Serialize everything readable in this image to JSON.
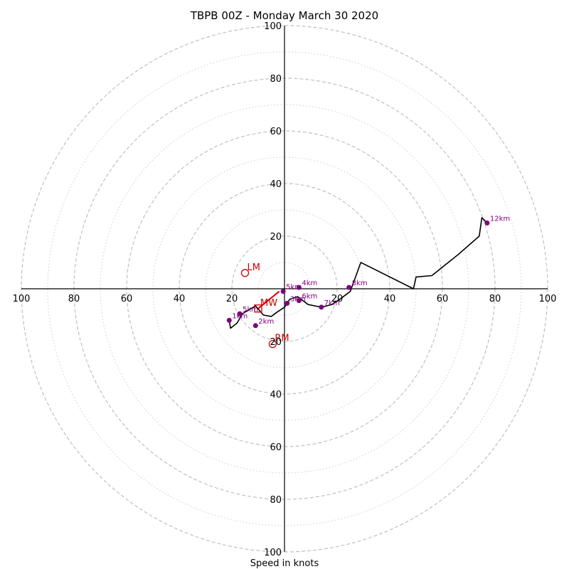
{
  "chart_data": {
    "type": "scatter",
    "subtype": "hodograph",
    "title": "TBPB 00Z - Monday March 30 2020",
    "xlabel": "Speed in knots",
    "ylabel": "",
    "xlim": [
      -100,
      100
    ],
    "ylim": [
      -100,
      100
    ],
    "rings_dashed": [
      20,
      40,
      60,
      80,
      100
    ],
    "rings_dotted": [
      10,
      30,
      50,
      70,
      90
    ],
    "x_tick_labels": [
      "100",
      "80",
      "60",
      "40",
      "20",
      "20",
      "40",
      "60",
      "80",
      "100"
    ],
    "y_tick_labels": [
      "100",
      "80",
      "60",
      "40",
      "20",
      "20",
      "40",
      "60",
      "80",
      "100"
    ],
    "colors": {
      "profile": "#000000",
      "height_marker": "#800080",
      "storm_motion": "#cc0000",
      "ring": "#bbbbbb"
    },
    "profile": {
      "u": [
        -21,
        -20.5,
        -18,
        -16,
        -11,
        -8,
        -5,
        -3,
        0,
        2,
        5,
        9,
        14,
        18,
        21,
        25,
        29,
        49,
        50,
        56,
        66,
        74,
        75,
        77
      ],
      "v": [
        -12,
        -15,
        -13,
        -9.5,
        -6.5,
        -10,
        -10.5,
        -9,
        -7,
        -4,
        -3,
        -6,
        -7,
        -6,
        -4,
        -1,
        10,
        0,
        4.5,
        5,
        13,
        20,
        27,
        25
      ]
    },
    "height_points": [
      {
        "label": "1km",
        "u": -21,
        "v": -12
      },
      {
        "label": "5km",
        "u": -17,
        "v": -9.5
      },
      {
        "label": "2km",
        "u": -11,
        "v": -14
      },
      {
        "label": "5km",
        "u": -0.5,
        "v": -1
      },
      {
        "label": "4km",
        "u": 5.5,
        "v": 0.5
      },
      {
        "label": "3km",
        "u": 1,
        "v": -5.5
      },
      {
        "label": "6km",
        "u": 5.5,
        "v": -4.5
      },
      {
        "label": "7km",
        "u": 14,
        "v": -7
      },
      {
        "label": "8km",
        "u": 24.5,
        "v": 0.5
      },
      {
        "label": "12km",
        "u": 77,
        "v": 25
      }
    ],
    "storm_motion": [
      {
        "label": "LM",
        "u": -15,
        "v": 6,
        "marker": "circle"
      },
      {
        "label": "RM",
        "u": -4.5,
        "v": -21,
        "marker": "circle"
      },
      {
        "label": "MW",
        "u": -10,
        "v": -7.5,
        "marker": "square"
      }
    ],
    "shear_vector": {
      "u": [
        -10,
        -2
      ],
      "v": [
        -7.5,
        -1
      ]
    }
  }
}
